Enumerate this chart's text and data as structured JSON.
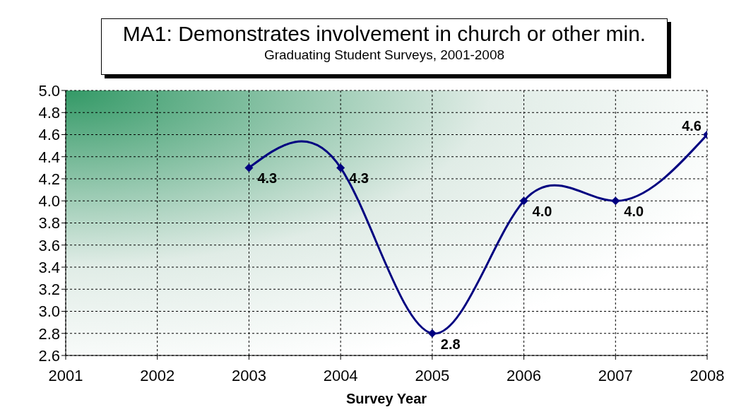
{
  "chart_data": {
    "type": "line",
    "title": "MA1: Demonstrates involvement in church or other min.",
    "subtitle": "Graduating Student Surveys, 2001-2008",
    "xlabel": "Survey Year",
    "x": [
      2003,
      2004,
      2005,
      2006,
      2007,
      2008
    ],
    "series": [
      {
        "color": "#000080",
        "values": [
          4.3,
          4.3,
          2.8,
          4.0,
          4.0,
          4.6
        ],
        "value_labels": [
          "4.3",
          "4.3",
          "2.8",
          "4.0",
          "4.0",
          "4.6"
        ]
      }
    ],
    "xlim": [
      2001,
      2008
    ],
    "xticks": [
      2001,
      2002,
      2003,
      2004,
      2005,
      2006,
      2007,
      2008
    ],
    "ylim": [
      2.6,
      5.0
    ],
    "yticks": [
      {
        "value": 2.6,
        "label": "2.6"
      },
      {
        "value": 2.8,
        "label": "2.8"
      },
      {
        "value": 3.0,
        "label": "3.0"
      },
      {
        "value": 3.2,
        "label": "3.2"
      },
      {
        "value": 3.4,
        "label": "3.4"
      },
      {
        "value": 3.6,
        "label": "3.6"
      },
      {
        "value": 3.8,
        "label": "3.8"
      },
      {
        "value": 4.0,
        "label": "4.0"
      },
      {
        "value": 4.2,
        "label": "4.2"
      },
      {
        "value": 4.4,
        "label": "4.4"
      },
      {
        "value": 4.6,
        "label": "4.6"
      },
      {
        "value": 4.8,
        "label": "4.8"
      },
      {
        "value": 5.0,
        "label": "5.0"
      }
    ],
    "grid": true,
    "marker": "diamond",
    "line_style": "solid"
  }
}
